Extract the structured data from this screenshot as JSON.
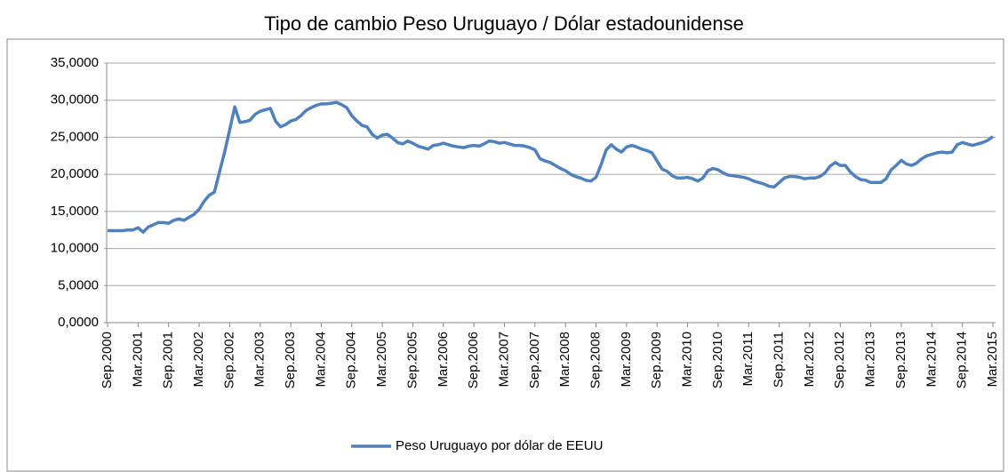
{
  "chart_data": {
    "type": "line",
    "title": "Tipo de cambio Peso Uruguayo / Dólar estadounidense",
    "categories": [
      "Sep.2000",
      null,
      null,
      null,
      null,
      null,
      "Mar.2001",
      null,
      null,
      null,
      null,
      null,
      "Sep.2001",
      null,
      null,
      null,
      null,
      null,
      "Mar.2002",
      null,
      null,
      null,
      null,
      null,
      "Sep.2002",
      null,
      null,
      null,
      null,
      null,
      "Mar.2003",
      null,
      null,
      null,
      null,
      null,
      "Sep.2003",
      null,
      null,
      null,
      null,
      null,
      "Mar.2004",
      null,
      null,
      null,
      null,
      null,
      "Sep.2004",
      null,
      null,
      null,
      null,
      null,
      "Mar.2005",
      null,
      null,
      null,
      null,
      null,
      "Sep.2005",
      null,
      null,
      null,
      null,
      null,
      "Mar.2006",
      null,
      null,
      null,
      null,
      null,
      "Sep.2006",
      null,
      null,
      null,
      null,
      null,
      "Mar.2007",
      null,
      null,
      null,
      null,
      null,
      "Sep.2007",
      null,
      null,
      null,
      null,
      null,
      "Mar.2008",
      null,
      null,
      null,
      null,
      null,
      "Sep.2008",
      null,
      null,
      null,
      null,
      null,
      "Mar.2009",
      null,
      null,
      null,
      null,
      null,
      "Sep.2009",
      null,
      null,
      null,
      null,
      null,
      "Mar.2010",
      null,
      null,
      null,
      null,
      null,
      "Sep.2010",
      null,
      null,
      null,
      null,
      null,
      "Mar.2011",
      null,
      null,
      null,
      null,
      null,
      "Sep.2011",
      null,
      null,
      null,
      null,
      null,
      "Mar.2012",
      null,
      null,
      null,
      null,
      null,
      "Sep.2012",
      null,
      null,
      null,
      null,
      null,
      "Mar.2013",
      null,
      null,
      null,
      null,
      null,
      "Sep.2013",
      null,
      null,
      null,
      null,
      null,
      "Mar.2014",
      null,
      null,
      null,
      null,
      null,
      "Sep.2014",
      null,
      null,
      null,
      null,
      null,
      "Mar.2015"
    ],
    "series": [
      {
        "name": "Peso Uruguayo por dólar de EEUU",
        "color": "#4f81bd",
        "values": [
          12.4,
          12.4,
          12.4,
          12.4,
          12.5,
          12.5,
          12.8,
          12.2,
          12.9,
          13.2,
          13.5,
          13.5,
          13.4,
          13.8,
          14.0,
          13.8,
          14.2,
          14.6,
          15.3,
          16.4,
          17.2,
          17.6,
          20.3,
          23.0,
          26.0,
          29.1,
          27.0,
          27.1,
          27.3,
          28.1,
          28.5,
          28.7,
          28.9,
          27.2,
          26.4,
          26.7,
          27.2,
          27.4,
          27.9,
          28.6,
          29.0,
          29.3,
          29.5,
          29.5,
          29.6,
          29.7,
          29.4,
          29.0,
          27.9,
          27.2,
          26.6,
          26.4,
          25.4,
          24.9,
          25.3,
          25.4,
          24.9,
          24.3,
          24.1,
          24.5,
          24.2,
          23.8,
          23.6,
          23.4,
          23.9,
          24.0,
          24.2,
          24.0,
          23.8,
          23.7,
          23.6,
          23.8,
          23.9,
          23.8,
          24.1,
          24.5,
          24.4,
          24.2,
          24.3,
          24.1,
          23.9,
          23.9,
          23.8,
          23.6,
          23.3,
          22.1,
          21.8,
          21.6,
          21.2,
          20.8,
          20.5,
          20.0,
          19.7,
          19.5,
          19.2,
          19.1,
          19.6,
          21.3,
          23.3,
          24.0,
          23.4,
          23.0,
          23.7,
          23.9,
          23.7,
          23.4,
          23.2,
          22.9,
          21.8,
          20.7,
          20.4,
          19.8,
          19.5,
          19.5,
          19.6,
          19.4,
          19.1,
          19.5,
          20.5,
          20.8,
          20.6,
          20.2,
          19.9,
          19.8,
          19.7,
          19.6,
          19.4,
          19.1,
          18.9,
          18.7,
          18.4,
          18.3,
          18.9,
          19.5,
          19.7,
          19.7,
          19.6,
          19.4,
          19.5,
          19.5,
          19.7,
          20.2,
          21.1,
          21.6,
          21.2,
          21.2,
          20.3,
          19.7,
          19.3,
          19.2,
          18.9,
          18.9,
          18.9,
          19.4,
          20.6,
          21.2,
          21.9,
          21.4,
          21.2,
          21.5,
          22.1,
          22.5,
          22.7,
          22.9,
          23.0,
          22.9,
          23.0,
          24.0,
          24.3,
          24.1,
          23.9,
          24.1,
          24.3,
          24.6,
          25.1
        ]
      }
    ],
    "ylim": [
      0,
      35
    ],
    "yticks": [
      {
        "value": 0,
        "label": "0,0000"
      },
      {
        "value": 5,
        "label": "5,0000"
      },
      {
        "value": 10,
        "label": "10,0000"
      },
      {
        "value": 15,
        "label": "15,0000"
      },
      {
        "value": 20,
        "label": "20,0000"
      },
      {
        "value": 25,
        "label": "25,0000"
      },
      {
        "value": 30,
        "label": "30,0000"
      },
      {
        "value": 35,
        "label": "35,0000"
      }
    ],
    "grid": true,
    "legend": "bottom"
  }
}
